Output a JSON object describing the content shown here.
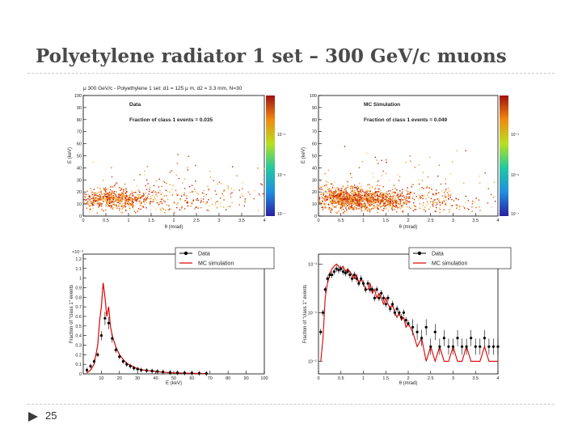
{
  "slide": {
    "title": "Polyetylene radiator 1 set – 300 GeV/c muons",
    "page_number": "25"
  },
  "colors": {
    "data_black": "#000000",
    "mc_red": "#e00000",
    "title_gray": "#4a4a4a",
    "rule_gray": "#c9c9c9",
    "arrow": "#3a3a3a"
  },
  "chart_data": [
    {
      "type": "heatmap",
      "title": "μ 300 GeV/c - Polyethylene 1 set: d1 = 125 μ m, d2 = 3.3 mm, N=30",
      "label": "Data",
      "annotation": "Fraction of class 1 events = 0.035",
      "xlabel": "θ (mrad)",
      "ylabel": "E (keV)",
      "xlim": [
        0,
        4
      ],
      "ylim": [
        0,
        100
      ],
      "x_ticks": [
        "0",
        "0.5",
        "1",
        "1.5",
        "2",
        "2.5",
        "3",
        "3.5",
        "4"
      ],
      "y_ticks": [
        "0",
        "10",
        "20",
        "30",
        "40",
        "50",
        "60",
        "70",
        "80",
        "90",
        "100"
      ],
      "z_ticks": [
        "10⁻⁵",
        "10⁻⁶",
        "10⁻⁷"
      ],
      "clusters": [
        {
          "x": 0.5,
          "y": 15,
          "sx": 0.35,
          "sy": 4,
          "n": 420
        },
        {
          "x": 1.0,
          "y": 14,
          "sx": 0.3,
          "sy": 4,
          "n": 180
        },
        {
          "x": 2.0,
          "y": 13,
          "sx": 0.9,
          "sy": 5,
          "n": 180
        },
        {
          "x": 2.0,
          "y": 20,
          "sx": 1.3,
          "sy": 12,
          "n": 140
        }
      ]
    },
    {
      "type": "heatmap",
      "title": "",
      "label": "MC Simulation",
      "annotation": "Fraction of class 1 events = 0.049",
      "xlabel": "θ (mrad)",
      "ylabel": "E (keV)",
      "xlim": [
        0,
        4
      ],
      "ylim": [
        0,
        100
      ],
      "x_ticks": [
        "0",
        "0.5",
        "1",
        "1.5",
        "2",
        "2.5",
        "3",
        "3.5",
        "4"
      ],
      "y_ticks": [
        "0",
        "10",
        "20",
        "30",
        "40",
        "50",
        "60",
        "70",
        "80",
        "90",
        "100"
      ],
      "z_ticks": [
        "10⁻⁵",
        "10⁻⁶",
        "10⁻⁷"
      ],
      "clusters": [
        {
          "x": 0.55,
          "y": 15,
          "sx": 0.35,
          "sy": 5,
          "n": 700
        },
        {
          "x": 1.05,
          "y": 14,
          "sx": 0.3,
          "sy": 4,
          "n": 350
        },
        {
          "x": 1.6,
          "y": 13,
          "sx": 0.25,
          "sy": 4,
          "n": 200
        },
        {
          "x": 2.3,
          "y": 13,
          "sx": 0.7,
          "sy": 5,
          "n": 200
        },
        {
          "x": 1.5,
          "y": 22,
          "sx": 1.2,
          "sy": 12,
          "n": 200
        }
      ]
    },
    {
      "type": "line",
      "xlabel": "E (keV)",
      "ylabel": "Fraction of \"class 1\" events",
      "xlim": [
        0,
        100
      ],
      "ylim": [
        0,
        1.25
      ],
      "y_exponent": "×10⁻³",
      "x_ticks": [
        "10",
        "20",
        "30",
        "40",
        "50",
        "60",
        "70",
        "80",
        "90",
        "100"
      ],
      "y_ticks": [
        "0",
        "0.1",
        "0.2",
        "0.3",
        "0.4",
        "0.5",
        "0.6",
        "0.7",
        "0.8",
        "0.9",
        "1",
        "1.1",
        "1.2"
      ],
      "legend": [
        "Data",
        "MC simulation"
      ],
      "series": [
        {
          "name": "Data",
          "x": [
            2,
            4,
            6,
            8,
            10,
            12,
            14,
            16,
            18,
            20,
            22,
            24,
            26,
            28,
            30,
            32,
            35,
            38,
            41,
            44,
            48,
            52,
            56,
            60,
            64,
            68
          ],
          "values": [
            0.04,
            0.08,
            0.13,
            0.2,
            0.4,
            0.58,
            0.53,
            0.37,
            0.25,
            0.18,
            0.13,
            0.1,
            0.08,
            0.06,
            0.05,
            0.04,
            0.035,
            0.03,
            0.025,
            0.02,
            0.015,
            0.012,
            0.01,
            0.008,
            0.006,
            0.004
          ]
        },
        {
          "name": "MC simulation",
          "x": [
            2,
            4,
            6,
            8,
            9,
            10,
            11,
            12,
            13,
            14,
            15,
            16,
            18,
            20,
            22,
            24,
            26,
            28,
            30,
            32,
            35,
            38,
            41,
            44,
            48,
            52,
            56,
            60,
            64,
            68
          ],
          "values": [
            0.01,
            0.04,
            0.1,
            0.3,
            0.55,
            0.7,
            0.95,
            0.8,
            0.6,
            0.7,
            0.5,
            0.4,
            0.28,
            0.2,
            0.15,
            0.11,
            0.09,
            0.07,
            0.055,
            0.045,
            0.035,
            0.03,
            0.022,
            0.018,
            0.012,
            0.01,
            0.008,
            0.006,
            0.004,
            0.003
          ]
        }
      ]
    },
    {
      "type": "line",
      "xlabel": "θ (mrad)",
      "ylabel": "Fraction of \"class 1\" events",
      "xlim": [
        0,
        4
      ],
      "y_scale": "log",
      "ylim": [
        5.5e-06,
        0.0016
      ],
      "x_ticks": [
        "0",
        "0.5",
        "1",
        "1.5",
        "2",
        "2.5",
        "3",
        "3.5",
        "4"
      ],
      "y_ticks": [
        "10⁻³",
        "10⁻⁴",
        "10⁻⁵"
      ],
      "legend": [
        "Data",
        "MC simulation"
      ],
      "series": [
        {
          "name": "Data",
          "x": [
            0.05,
            0.1,
            0.15,
            0.2,
            0.25,
            0.3,
            0.35,
            0.4,
            0.45,
            0.5,
            0.55,
            0.6,
            0.65,
            0.7,
            0.75,
            0.8,
            0.85,
            0.9,
            0.95,
            1.0,
            1.05,
            1.1,
            1.15,
            1.2,
            1.25,
            1.3,
            1.35,
            1.4,
            1.45,
            1.5,
            1.55,
            1.6,
            1.65,
            1.7,
            1.75,
            1.8,
            1.85,
            1.9,
            1.95,
            2.0,
            2.1,
            2.2,
            2.3,
            2.4,
            2.5,
            2.6,
            2.7,
            2.8,
            2.9,
            3.0,
            3.1,
            3.2,
            3.3,
            3.4,
            3.5,
            3.6,
            3.7,
            3.8,
            3.9,
            4.0
          ],
          "values": [
            4e-05,
            0.0001,
            0.0003,
            0.0005,
            0.0006,
            0.0006,
            0.0007,
            0.0008,
            0.00075,
            0.0008,
            0.0007,
            0.00065,
            0.0007,
            0.0006,
            0.0005,
            0.0006,
            0.0005,
            0.0004,
            0.0005,
            0.0004,
            0.0003,
            0.0004,
            0.0003,
            0.0003,
            0.0002,
            0.0003,
            0.0002,
            0.00025,
            0.0002,
            0.00015,
            0.0002,
            0.00012,
            0.00015,
            0.0001,
            0.00012,
            0.0001,
            8e-05,
            0.0001,
            7e-05,
            6e-05,
            5e-05,
            4e-05,
            3e-05,
            5e-05,
            2e-05,
            4e-05,
            2e-05,
            3e-05,
            2e-05,
            2e-05,
            3e-05,
            2e-05,
            2e-05,
            3e-05,
            2e-05,
            2e-05,
            3e-05,
            2e-05,
            2e-05,
            2e-05
          ]
        },
        {
          "name": "MC simulation",
          "x": [
            0.05,
            0.1,
            0.15,
            0.2,
            0.25,
            0.3,
            0.35,
            0.4,
            0.45,
            0.5,
            0.55,
            0.6,
            0.65,
            0.7,
            0.75,
            0.8,
            0.85,
            0.9,
            0.95,
            1.0,
            1.05,
            1.1,
            1.15,
            1.2,
            1.25,
            1.3,
            1.35,
            1.4,
            1.45,
            1.5,
            1.55,
            1.6,
            1.65,
            1.7,
            1.75,
            1.8,
            1.85,
            1.9,
            1.95,
            2.0,
            2.1,
            2.2,
            2.3,
            2.4,
            2.5,
            2.6,
            2.7,
            2.8,
            2.9,
            3.0,
            3.1,
            3.2,
            3.3,
            3.4,
            3.5,
            3.6,
            3.7,
            3.8,
            3.9,
            4.0
          ],
          "values": [
            1e-05,
            3e-05,
            0.0002,
            0.0004,
            0.0006,
            0.0008,
            0.0009,
            0.001,
            0.0009,
            0.0008,
            0.0009,
            0.0007,
            0.0008,
            0.0007,
            0.0006,
            0.0005,
            0.0006,
            0.0004,
            0.0005,
            0.0004,
            0.0003,
            0.0003,
            0.0004,
            0.00025,
            0.0003,
            0.0002,
            0.00025,
            0.0002,
            0.00015,
            0.0002,
            0.00015,
            0.00012,
            0.00015,
            0.0001,
            8e-05,
            0.0001,
            7e-05,
            8e-05,
            5e-05,
            6e-05,
            4e-05,
            2e-05,
            3e-05,
            1e-05,
            2e-05,
            1e-05,
            2e-05,
            1e-05,
            1e-05,
            2e-05,
            1e-05,
            1e-05,
            2e-05,
            1e-05,
            1e-05,
            1e-05,
            2e-05,
            1e-05,
            1e-05,
            1e-05
          ]
        }
      ]
    }
  ]
}
